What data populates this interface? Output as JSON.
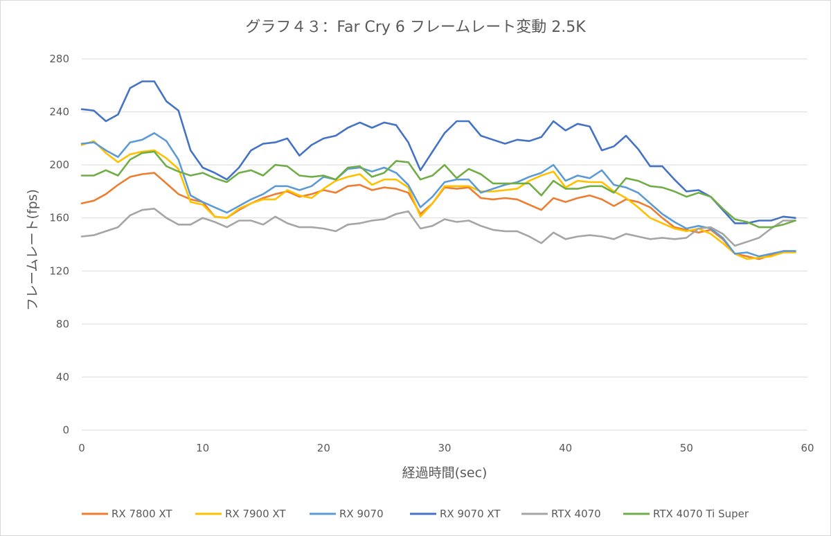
{
  "chart_data": {
    "type": "line",
    "title": "グラフ４３：Far Cry 6 フレームレート変動 2.5K",
    "xlabel": "経過時間(sec)",
    "ylabel": "フレームレート(fps)",
    "xlim": [
      0,
      60
    ],
    "ylim": [
      0,
      280
    ],
    "xticks": [
      "0",
      "10",
      "20",
      "30",
      "40",
      "50",
      "60"
    ],
    "yticks": [
      "0",
      "40",
      "80",
      "120",
      "160",
      "200",
      "240",
      "280"
    ],
    "grid": "horizontal",
    "legend_position": "bottom",
    "x": [
      0,
      1,
      2,
      3,
      4,
      5,
      6,
      7,
      8,
      9,
      10,
      11,
      12,
      13,
      14,
      15,
      16,
      17,
      18,
      19,
      20,
      21,
      22,
      23,
      24,
      25,
      26,
      27,
      28,
      29,
      30,
      31,
      32,
      33,
      34,
      35,
      36,
      37,
      38,
      39,
      40,
      41,
      42,
      43,
      44,
      45,
      46,
      47,
      48,
      49,
      50,
      51,
      52,
      53,
      54,
      55,
      56,
      57,
      58,
      59
    ],
    "series": [
      {
        "name": "RX 7800 XT",
        "color": "#ED7D31",
        "values": [
          171,
          173,
          178,
          185,
          191,
          193,
          194,
          186,
          178,
          174,
          172,
          161,
          160,
          166,
          171,
          175,
          178,
          180,
          176,
          178,
          181,
          179,
          184,
          185,
          181,
          183,
          182,
          179,
          163,
          171,
          183,
          182,
          183,
          175,
          174,
          175,
          174,
          170,
          166,
          175,
          172,
          175,
          177,
          174,
          169,
          174,
          172,
          168,
          160,
          153,
          151,
          149,
          151,
          144,
          133,
          131,
          129,
          132,
          135,
          135
        ]
      },
      {
        "name": "RX 7900 XT",
        "color": "#FFC000",
        "values": [
          215,
          218,
          209,
          202,
          208,
          210,
          211,
          205,
          197,
          172,
          170,
          161,
          160,
          167,
          171,
          174,
          174,
          181,
          177,
          175,
          182,
          188,
          191,
          193,
          185,
          189,
          189,
          183,
          161,
          171,
          184,
          184,
          184,
          180,
          180,
          181,
          182,
          188,
          192,
          195,
          183,
          188,
          187,
          187,
          180,
          175,
          168,
          160,
          156,
          152,
          150,
          152,
          148,
          141,
          133,
          129,
          130,
          131,
          134,
          134
        ]
      },
      {
        "name": "RX 9070",
        "color": "#5B9BD5",
        "values": [
          216,
          217,
          211,
          206,
          217,
          219,
          224,
          218,
          204,
          177,
          172,
          168,
          164,
          169,
          174,
          178,
          184,
          184,
          181,
          184,
          191,
          189,
          197,
          198,
          195,
          198,
          194,
          185,
          168,
          176,
          187,
          189,
          189,
          179,
          182,
          185,
          187,
          191,
          194,
          200,
          188,
          192,
          190,
          196,
          185,
          183,
          179,
          171,
          163,
          157,
          152,
          154,
          152,
          145,
          133,
          134,
          131,
          133,
          135,
          135
        ]
      },
      {
        "name": "RX 9070 XT",
        "color": "#4472C4",
        "values": [
          242,
          241,
          233,
          238,
          258,
          263,
          263,
          248,
          241,
          211,
          198,
          194,
          189,
          198,
          211,
          216,
          217,
          220,
          207,
          215,
          220,
          222,
          228,
          232,
          228,
          232,
          230,
          217,
          196,
          210,
          224,
          233,
          233,
          222,
          219,
          216,
          219,
          218,
          221,
          233,
          226,
          231,
          229,
          211,
          214,
          222,
          212,
          199,
          199,
          189,
          180,
          181,
          176,
          166,
          156,
          156,
          158,
          158,
          161,
          160
        ]
      },
      {
        "name": "RTX 4070",
        "color": "#A5A5A5",
        "values": [
          146,
          147,
          150,
          153,
          162,
          166,
          167,
          160,
          155,
          155,
          160,
          157,
          153,
          158,
          158,
          155,
          161,
          156,
          153,
          153,
          152,
          150,
          155,
          156,
          158,
          159,
          163,
          165,
          152,
          154,
          159,
          157,
          158,
          154,
          151,
          150,
          150,
          146,
          141,
          149,
          144,
          146,
          147,
          146,
          144,
          148,
          146,
          144,
          145,
          144,
          145,
          152,
          153,
          148,
          139,
          142,
          145,
          152,
          158,
          158
        ]
      },
      {
        "name": "RTX 4070 Ti Super",
        "color": "#70AD47",
        "values": [
          192,
          192,
          196,
          192,
          204,
          209,
          210,
          199,
          195,
          192,
          194,
          190,
          187,
          194,
          196,
          192,
          200,
          199,
          192,
          191,
          192,
          189,
          198,
          199,
          191,
          194,
          203,
          202,
          189,
          192,
          200,
          190,
          197,
          193,
          186,
          186,
          186,
          186,
          177,
          188,
          182,
          182,
          184,
          184,
          179,
          190,
          188,
          184,
          183,
          180,
          176,
          179,
          176,
          167,
          159,
          157,
          153,
          153,
          155,
          158
        ]
      }
    ]
  }
}
